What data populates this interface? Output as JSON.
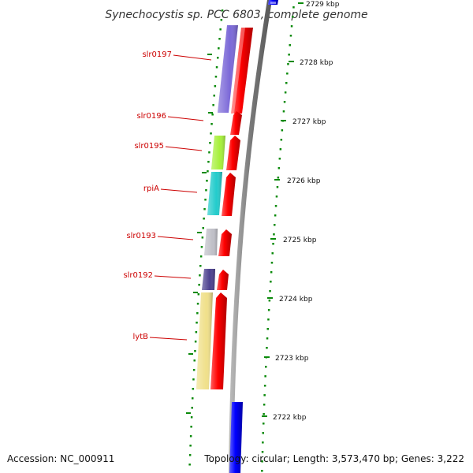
{
  "header": {
    "title": "Synechocystis sp. PCC 6803, complete genome"
  },
  "footer": {
    "accession": "Accession: NC_000911",
    "topology": "Topology: circular; Length: 3,573,470 bp; Genes: 3,222"
  },
  "ruler": {
    "unit_label": "kbp",
    "ticks": [
      "2729 kbp",
      "2728 kbp",
      "2727 kbp",
      "2726 kbp",
      "2725 kbp",
      "2724 kbp",
      "2723 kbp",
      "2722 kbp"
    ]
  },
  "genes": [
    {
      "name": "slr0197",
      "color": "#7b68d8"
    },
    {
      "name": "slr0196",
      "color": "#ff0000"
    },
    {
      "name": "slr0195",
      "color": "#a6f03a"
    },
    {
      "name": "rpiA",
      "color": "#22cccc"
    },
    {
      "name": "slr0193",
      "color": "#c0c0c8"
    },
    {
      "name": "slr0192",
      "color": "#4b3f8f"
    },
    {
      "name": "lytB",
      "color": "#f0e08a"
    }
  ],
  "colors": {
    "cds": "#ff0000",
    "other_strand": "#0000ff",
    "backbone": "#808080",
    "gc_dots": "#0a8a0a",
    "label": "#cc0000"
  }
}
